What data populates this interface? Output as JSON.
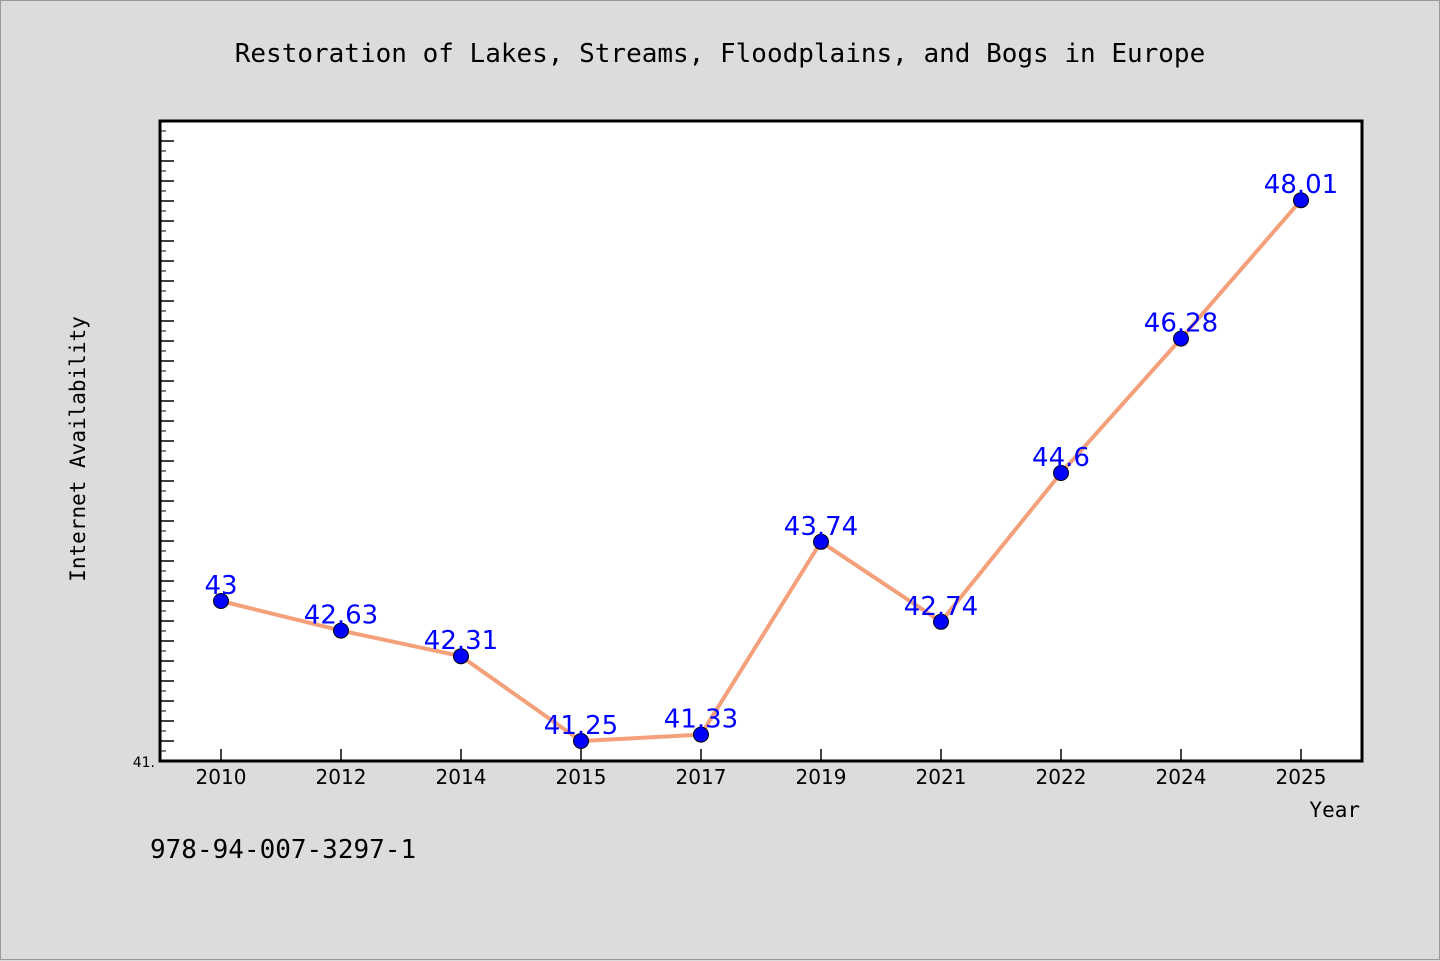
{
  "chart_data": {
    "type": "line",
    "title": "Restoration of Lakes, Streams, Floodplains, and Bogs in Europe",
    "xlabel": "Year",
    "ylabel": "Internet Availability",
    "categories": [
      "2010",
      "2012",
      "2014",
      "2015",
      "2017",
      "2019",
      "2021",
      "2022",
      "2024",
      "2025"
    ],
    "series": [
      {
        "values": [
          43,
          42.63,
          42.31,
          41.25,
          41.33,
          43.74,
          42.74,
          44.6,
          46.28,
          48.01
        ],
        "labels": [
          "43",
          "42.63",
          "42.31",
          "41.25",
          "41.33",
          "43.74",
          "42.74",
          "44.6",
          "46.28",
          "48.01"
        ]
      }
    ],
    "ylim": [
      41,
      49
    ],
    "y_tick_label": "41.",
    "grid": false,
    "legend": "none"
  },
  "colors": {
    "line": "#f4a07a",
    "marker": "#0000ff",
    "data_label": "#0000ff",
    "background": "#dcdcdc",
    "plot_area": "#ffffff"
  },
  "footer": {
    "isbn": "978-94-007-3297-1"
  }
}
